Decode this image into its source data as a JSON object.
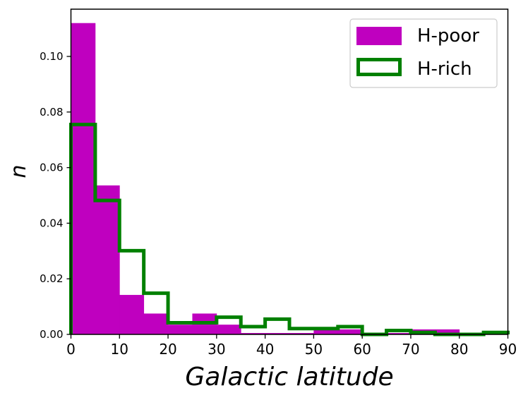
{
  "chart_data": {
    "type": "histogram",
    "xlabel": "Galactic latitude",
    "ylabel": "n",
    "xlim": [
      0,
      90
    ],
    "ylim": [
      0,
      0.117
    ],
    "x_ticks": [
      "0",
      "10",
      "20",
      "30",
      "40",
      "50",
      "60",
      "70",
      "80",
      "90"
    ],
    "y_ticks": [
      "0.00",
      "0.02",
      "0.04",
      "0.06",
      "0.08",
      "0.10"
    ],
    "bin_edges": [
      0,
      5,
      10,
      15,
      20,
      25,
      30,
      35,
      40,
      45,
      50,
      55,
      60,
      65,
      70,
      75,
      80,
      85,
      90
    ],
    "legend_position": "upper right",
    "series": [
      {
        "name": "H-poor",
        "style": "filled",
        "color": "#bf00bf",
        "values": [
          0.112,
          0.0536,
          0.0142,
          0.0075,
          0.0035,
          0.0075,
          0.0035,
          0.0005,
          0.0005,
          0.0005,
          0.0018,
          0.0018,
          0,
          0.0005,
          0.0018,
          0.0018,
          0,
          0
        ]
      },
      {
        "name": "H-rich",
        "style": "step",
        "color": "#008000",
        "values": [
          0.0755,
          0.0482,
          0.0301,
          0.0148,
          0.0042,
          0.0042,
          0.0062,
          0.0028,
          0.0055,
          0.0021,
          0.0021,
          0.0028,
          0,
          0.0014,
          0.0007,
          0,
          0,
          0.0007
        ]
      }
    ]
  }
}
